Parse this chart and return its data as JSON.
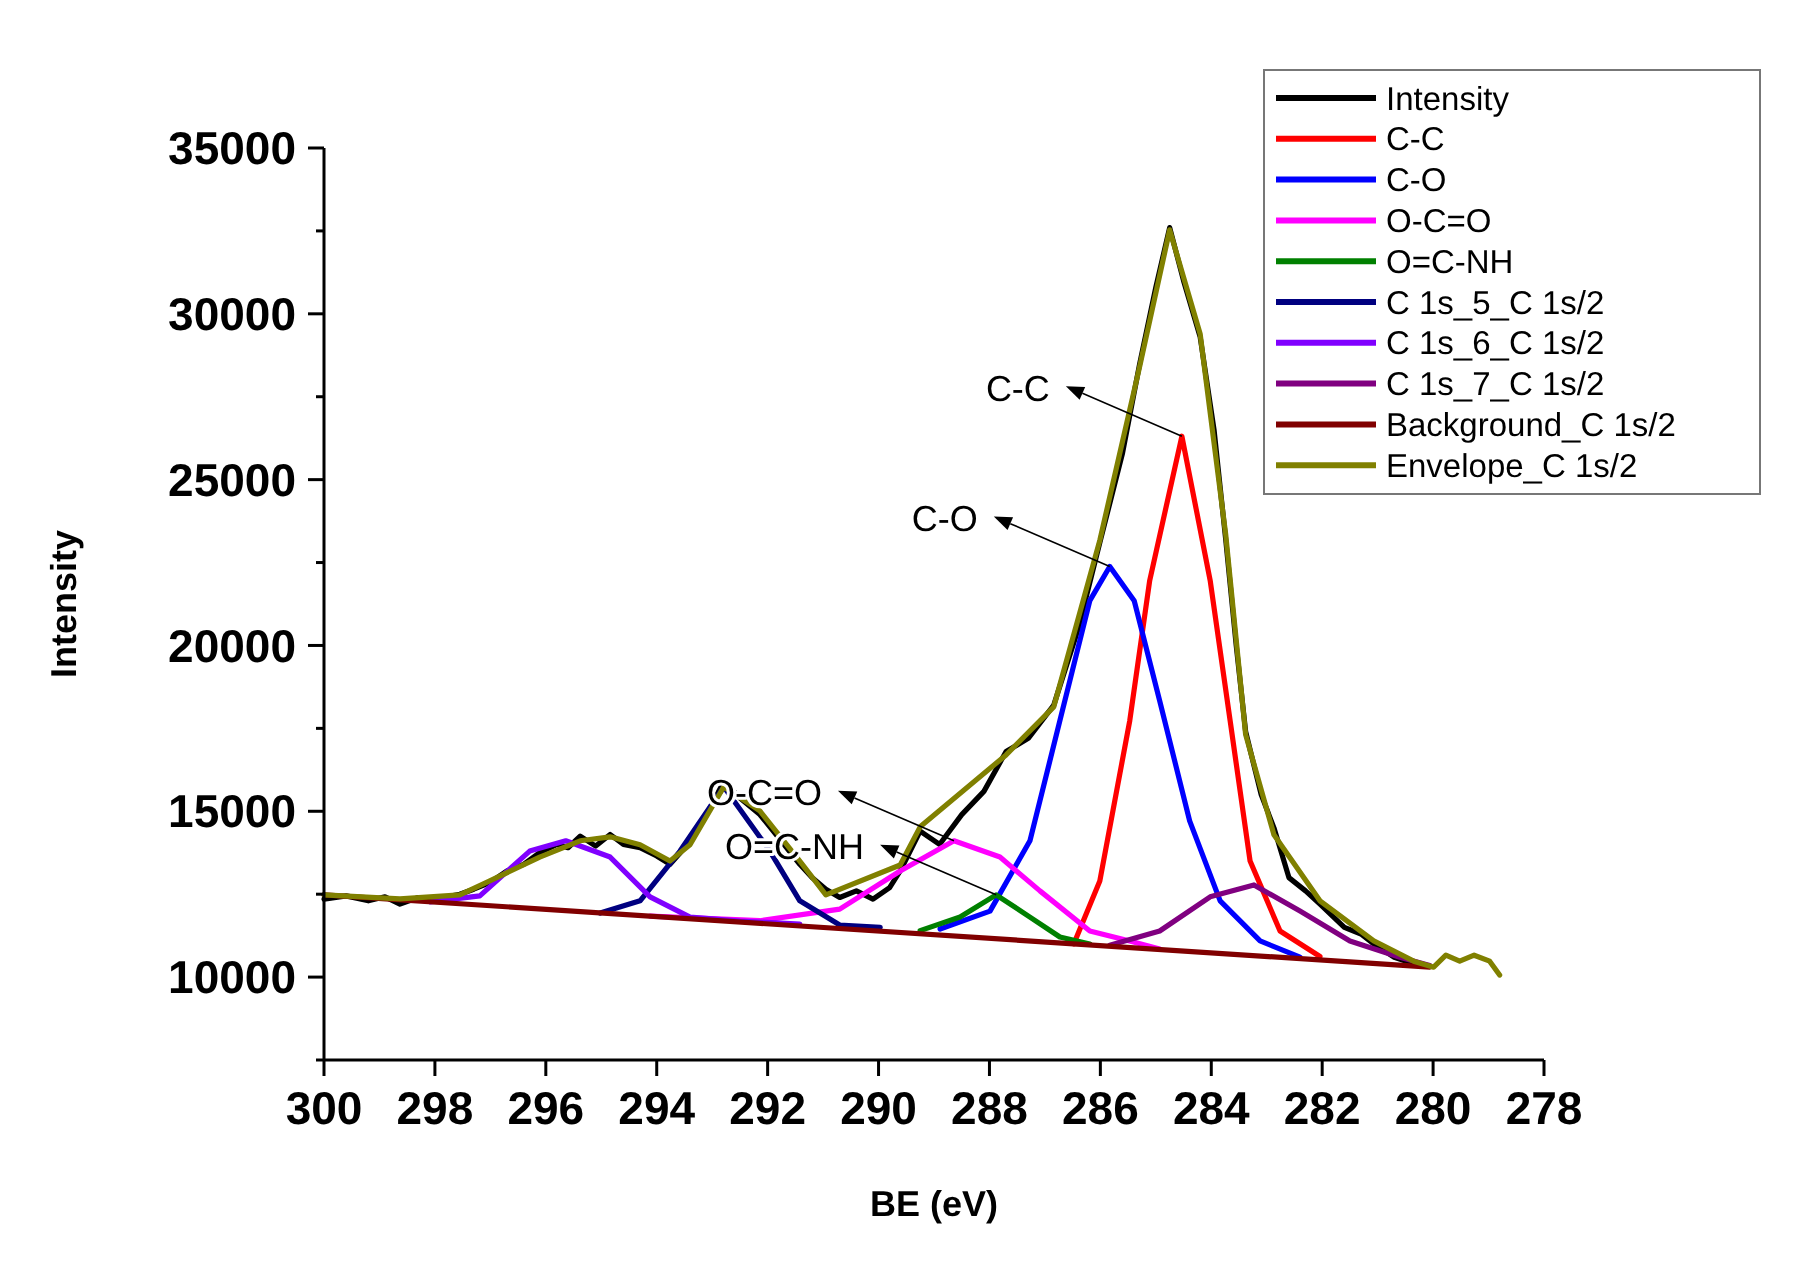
{
  "chart_data": {
    "type": "line",
    "xlabel": "BE (eV)",
    "ylabel": "Intensity",
    "xlim": [
      300,
      278
    ],
    "xticks": [
      300,
      298,
      296,
      294,
      292,
      290,
      288,
      286,
      284,
      282,
      280,
      278
    ],
    "ylim": [
      7500,
      35000
    ],
    "yticks": [
      {
        "value": 7500,
        "label": null
      },
      10000,
      {
        "value": 12500,
        "label": null
      },
      15000,
      {
        "value": 17500,
        "label": null
      },
      20000,
      {
        "value": 22500,
        "label": null
      },
      25000,
      {
        "value": 27500,
        "label": null
      },
      30000,
      {
        "value": 32500,
        "label": null
      },
      35000
    ],
    "legend": "top right",
    "grid": false,
    "marker": "none",
    "line_style": "solid",
    "annotations": [
      {
        "text": "C-C",
        "x": 284.53,
        "y": 26310
      },
      {
        "text": "C-O",
        "x": 285.83,
        "y": 22380
      },
      {
        "text": "O-C=O",
        "x": 288.64,
        "y": 14110
      },
      {
        "text": "O=C-NH",
        "x": 287.88,
        "y": 12480
      }
    ],
    "series": [
      {
        "name": "Intensity",
        "color": "#000000",
        "x": [
          300,
          299.6,
          299.2,
          298.9,
          298.63,
          298.3,
          298,
          297.55,
          297.3,
          297.01,
          296.7,
          296.4,
          296.11,
          295.8,
          295.6,
          295.38,
          295.1,
          294.84,
          294.6,
          294.3,
          294.0,
          293.76,
          293.6,
          293.4,
          293.1,
          292.79,
          292.5,
          292.14,
          291.8,
          291.42,
          291.2,
          290.95,
          290.7,
          290.4,
          290.1,
          289.8,
          289.61,
          289.25,
          288.9,
          288.5,
          288.1,
          287.7,
          287.3,
          286.84,
          286.4,
          286.01,
          285.6,
          285.29,
          285.0,
          284.75,
          284.5,
          284.2,
          283.95,
          283.74,
          283.55,
          283.38,
          283.1,
          282.87,
          282.6,
          282.3,
          282.04,
          281.6,
          281.3,
          281.07,
          280.7,
          280.35
        ],
        "values": [
          12350,
          12450,
          12300,
          12420,
          12200,
          12400,
          12350,
          12500,
          12650,
          12850,
          13200,
          13400,
          13750,
          14000,
          13900,
          14250,
          13950,
          14300,
          14000,
          13900,
          13650,
          13400,
          13700,
          14100,
          14900,
          15900,
          15400,
          14900,
          14200,
          13400,
          13000,
          12650,
          12400,
          12600,
          12350,
          12700,
          13200,
          14400,
          14000,
          14900,
          15600,
          16800,
          17200,
          18200,
          20500,
          23100,
          25800,
          28500,
          30800,
          32600,
          31000,
          29300,
          26500,
          23200,
          20000,
          17400,
          15500,
          14500,
          13000,
          12600,
          12200,
          11500,
          11300,
          11000,
          10600,
          10400
        ]
      },
      {
        "name": "C-C",
        "color": "#ff0000",
        "x": [
          286.48,
          286.01,
          285.47,
          285.11,
          284.53,
          284.02,
          283.66,
          283.3,
          282.76,
          282.04
        ],
        "values": [
          11000,
          12900,
          17730,
          21960,
          26310,
          21960,
          17730,
          13500,
          11390,
          10620
        ]
      },
      {
        "name": "C-O",
        "color": "#0000ff",
        "x": [
          288.89,
          287.99,
          287.27,
          286.73,
          286.19,
          285.83,
          285.39,
          284.93,
          284.39,
          283.84,
          283.12,
          282.4
        ],
        "values": [
          11450,
          11990,
          14110,
          17730,
          21350,
          22380,
          21350,
          18330,
          14710,
          12300,
          11090,
          10600
        ]
      },
      {
        "name": "O-C=O",
        "color": "#ff00ff",
        "x": [
          294.12,
          292.14,
          290.7,
          289.61,
          288.64,
          287.81,
          287.09,
          286.19,
          285.47,
          284.93
        ],
        "values": [
          11840,
          11700,
          12050,
          13200,
          14110,
          13620,
          12600,
          11390,
          11090,
          10850
        ]
      },
      {
        "name": "O=C-NH",
        "color": "#008000",
        "x": [
          289.25,
          288.53,
          287.88,
          287.27,
          286.73,
          286.19
        ],
        "values": [
          11400,
          11810,
          12480,
          11810,
          11210,
          11000
        ]
      },
      {
        "name": "C 1s_5_C 1s/2",
        "color": "#000080",
        "x": [
          295.02,
          294.3,
          293.58,
          292.79,
          291.96,
          291.42,
          290.7,
          289.97
        ],
        "values": [
          11930,
          12300,
          13800,
          15740,
          13800,
          12300,
          11570,
          11500
        ]
      },
      {
        "name": "C 1s_6_C 1s/2",
        "color": "#8000ff",
        "x": [
          298.09,
          297.19,
          296.29,
          295.64,
          294.84,
          294.12,
          293.4,
          292.5,
          291.42
        ],
        "values": [
          12270,
          12450,
          13800,
          14110,
          13620,
          12420,
          11810,
          11690,
          11600
        ]
      },
      {
        "name": "C 1s_7_C 1s/2",
        "color": "#800080",
        "x": [
          285.83,
          284.93,
          284.02,
          283.23,
          282.4,
          281.5,
          280.6,
          280.06
        ],
        "values": [
          10960,
          11390,
          12420,
          12780,
          11990,
          11090,
          10600,
          10350
        ]
      },
      {
        "name": "Background_C 1s/2",
        "color": "#800000",
        "x": [
          300,
          280.06
        ],
        "values": [
          12480,
          10300
        ]
      },
      {
        "name": "Envelope_C 1s/2",
        "color": "#808000",
        "x": [
          300,
          298.63,
          297.55,
          297.01,
          296.11,
          295.38,
          294.84,
          294.3,
          293.76,
          293.4,
          292.79,
          292.14,
          291.42,
          290.95,
          289.61,
          289.25,
          287.7,
          286.84,
          286.01,
          285.29,
          284.75,
          284.2,
          283.74,
          283.38,
          282.87,
          282.04,
          281.07,
          280.35,
          279.99,
          279.77,
          279.52,
          279.26,
          278.98,
          278.8
        ],
        "values": [
          12480,
          12360,
          12480,
          12900,
          13620,
          14110,
          14230,
          13990,
          13500,
          13990,
          15740,
          15010,
          13500,
          12480,
          13380,
          14530,
          16700,
          18150,
          23170,
          28420,
          32530,
          29390,
          23350,
          17310,
          14290,
          12300,
          11090,
          10480,
          10300,
          10660,
          10480,
          10660,
          10480,
          10060
        ]
      }
    ]
  }
}
